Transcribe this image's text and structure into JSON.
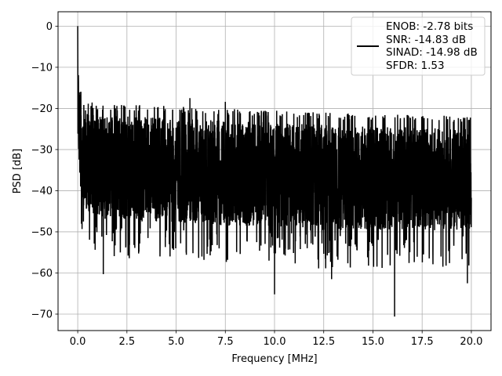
{
  "chart_data": {
    "type": "line",
    "title": "",
    "xlabel": "Frequency [MHz]",
    "ylabel": "PSD [dB]",
    "xlim": [
      -1.0,
      21.0
    ],
    "ylim": [
      -74.0,
      3.5
    ],
    "xticks": [
      0.0,
      2.5,
      5.0,
      7.5,
      10.0,
      12.5,
      15.0,
      17.5,
      20.0
    ],
    "xtick_labels": [
      "0.0",
      "2.5",
      "5.0",
      "7.5",
      "10.0",
      "12.5",
      "15.0",
      "17.5",
      "20.0"
    ],
    "yticks": [
      0,
      -10,
      -20,
      -30,
      -40,
      -50,
      -60,
      -70
    ],
    "ytick_labels": [
      "0",
      "−10",
      "−20",
      "−30",
      "−40",
      "−50",
      "−60",
      "−70"
    ],
    "grid": true,
    "legend_position": "top-right",
    "series": [
      {
        "name": "ENOB: -2.78 bits\nSNR: -14.83 dB\nSINAD: -14.98 dB\nSFDR: 1.53",
        "legend_lines": [
          "ENOB: -2.78 bits",
          "SNR: -14.83 dB",
          "SINAD: -14.98 dB",
          "SFDR: 1.53"
        ],
        "color": "#000000",
        "description": "dense noise-like spectrum",
        "peak": {
          "x": 0.0,
          "y": 0.0
        },
        "profile_x": [
          0.0,
          0.02,
          0.05,
          0.1,
          0.2,
          0.4,
          0.7,
          1.0,
          2.5,
          5.0,
          7.5,
          10.0,
          12.5,
          15.0,
          17.5,
          20.0
        ],
        "upper_envelope_db": [
          0.0,
          -4.0,
          -8.0,
          -12.0,
          -16.0,
          -19.0,
          -20.0,
          -20.5,
          -20.5,
          -21.0,
          -21.5,
          -22.0,
          -22.5,
          -23.0,
          -23.0,
          -23.5
        ],
        "lower_envelope_db": [
          -25.0,
          -30.0,
          -35.0,
          -40.0,
          -44.0,
          -46.0,
          -47.0,
          -48.0,
          -49.0,
          -49.0,
          -50.0,
          -50.0,
          -51.0,
          -51.0,
          -51.0,
          -51.0
        ],
        "notable_points": [
          {
            "x": 1.3,
            "y": -60.3
          },
          {
            "x": 10.0,
            "y": -65.2
          },
          {
            "x": 12.9,
            "y": -61.5
          },
          {
            "x": 16.1,
            "y": -70.6
          },
          {
            "x": 19.8,
            "y": -62.5
          },
          {
            "x": 7.5,
            "y": -18.4
          },
          {
            "x": 5.7,
            "y": -17.5
          }
        ]
      }
    ]
  }
}
